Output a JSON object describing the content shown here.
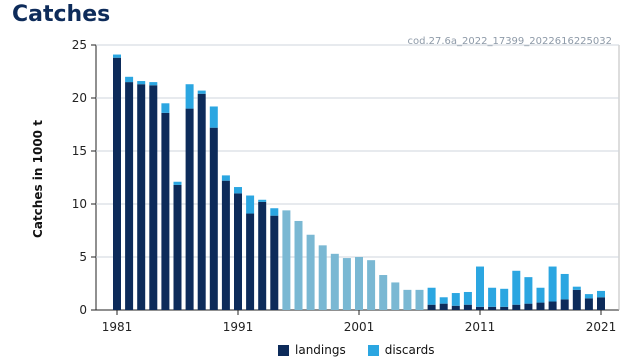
{
  "page": {
    "title": "Catches",
    "code": "cod.27.6a_2022_17399_2022616225032"
  },
  "colors": {
    "landings": "#0d2b5a",
    "discards": "#2ba6e1",
    "total": "#7ab8d3"
  },
  "chart_data": {
    "type": "bar",
    "stacked": true,
    "ylabel": "Catches in 1000 t",
    "ylim": [
      0,
      25
    ],
    "yticks": [
      0,
      5,
      10,
      15,
      20,
      25
    ],
    "xticks": [
      1981,
      1991,
      2001,
      2011,
      2021
    ],
    "grid": true,
    "legend_position": "bottom",
    "categories": [
      1981,
      1982,
      1983,
      1984,
      1985,
      1986,
      1987,
      1988,
      1989,
      1990,
      1991,
      1992,
      1993,
      1994,
      1995,
      1996,
      1997,
      1998,
      1999,
      2000,
      2001,
      2002,
      2003,
      2004,
      2005,
      2006,
      2007,
      2008,
      2009,
      2010,
      2011,
      2012,
      2013,
      2014,
      2015,
      2016,
      2017,
      2018,
      2019,
      2020,
      2021
    ],
    "series": [
      {
        "name": "landings",
        "values": [
          23.8,
          21.5,
          21.3,
          21.2,
          18.6,
          11.8,
          19.0,
          20.4,
          17.2,
          12.2,
          11.0,
          9.1,
          10.2,
          8.9,
          null,
          null,
          null,
          null,
          null,
          null,
          null,
          null,
          null,
          null,
          null,
          null,
          0.5,
          0.6,
          0.4,
          0.5,
          0.3,
          0.3,
          0.3,
          0.5,
          0.6,
          0.7,
          0.8,
          1.0,
          1.9,
          1.1,
          1.2
        ]
      },
      {
        "name": "discards",
        "values": [
          0.3,
          0.5,
          0.3,
          0.3,
          0.9,
          0.3,
          2.3,
          0.3,
          2.0,
          0.5,
          0.6,
          1.7,
          0.2,
          0.7,
          null,
          null,
          null,
          null,
          null,
          null,
          null,
          null,
          null,
          null,
          null,
          null,
          1.6,
          0.6,
          1.2,
          1.2,
          3.8,
          1.8,
          1.7,
          3.2,
          2.5,
          1.4,
          3.3,
          2.4,
          0.3,
          0.4,
          0.6
        ]
      },
      {
        "name": "total",
        "values": [
          null,
          null,
          null,
          null,
          null,
          null,
          null,
          null,
          null,
          null,
          null,
          null,
          null,
          null,
          9.4,
          8.4,
          7.1,
          6.1,
          5.3,
          4.9,
          5.0,
          4.7,
          3.3,
          2.6,
          1.9,
          1.9,
          null,
          null,
          null,
          null,
          null,
          null,
          null,
          null,
          null,
          null,
          null,
          null,
          null,
          null,
          null
        ]
      }
    ]
  },
  "legend": {
    "landings": "landings",
    "discards": "discards"
  }
}
